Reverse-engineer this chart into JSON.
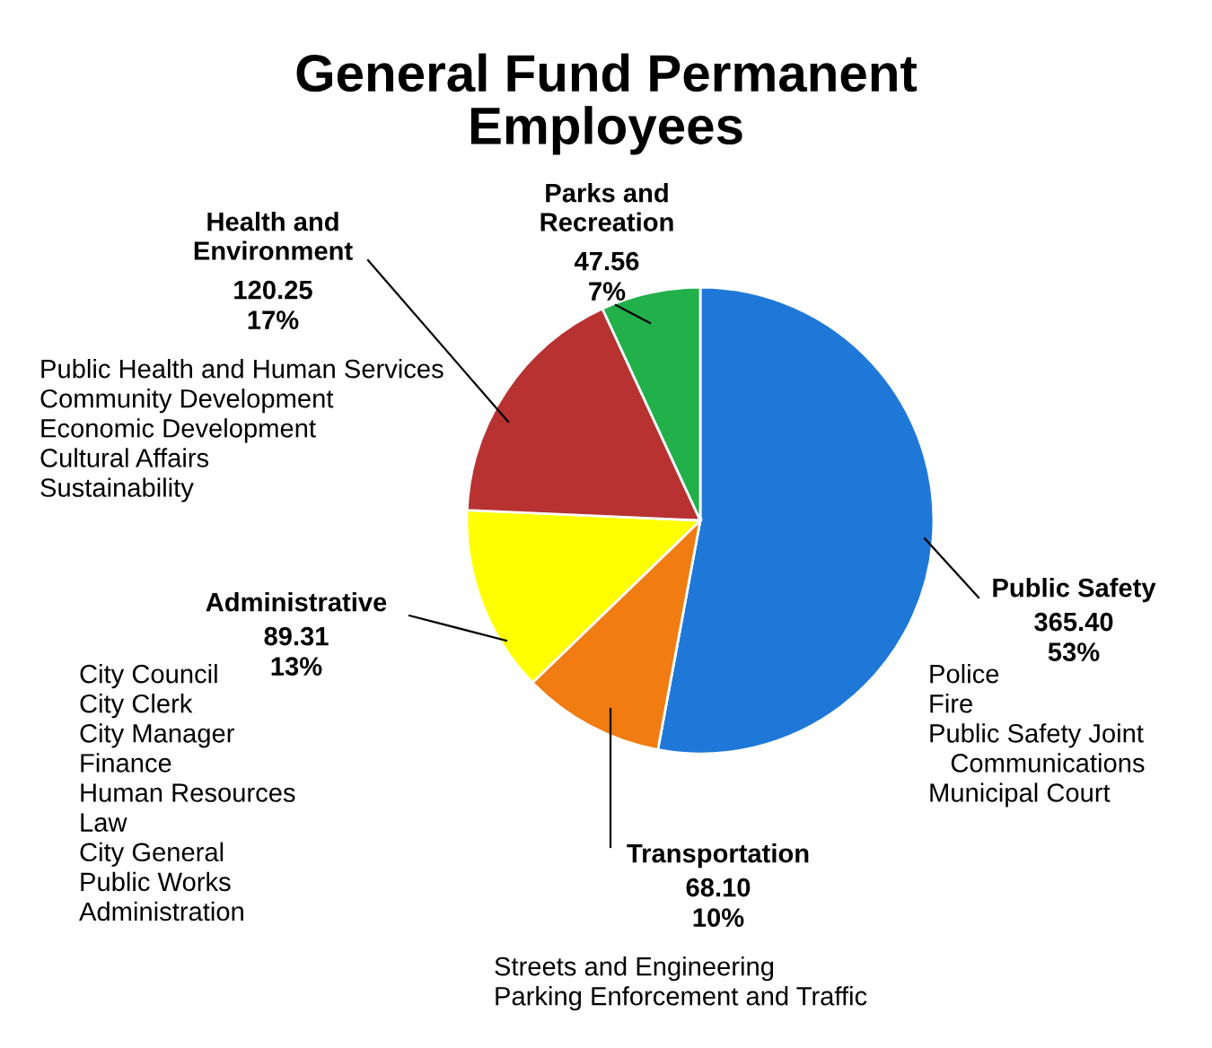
{
  "chart_data": {
    "type": "pie",
    "title": "General Fund Permanent\nEmployees",
    "categories": [
      "Public Safety",
      "Transportation",
      "Administrative",
      "Health and\nEnvironment",
      "Parks and\nRecreation"
    ],
    "values": [
      365.4,
      68.1,
      89.31,
      120.25,
      47.56
    ],
    "value_labels": [
      "365.40\n53%",
      "68.10\n10%",
      "89.31\n13%",
      "120.25\n17%",
      "47.56\n7%"
    ],
    "colors": [
      "#1f78d8",
      "#f07c12",
      "#ffff00",
      "#b83232",
      "#22b04a"
    ],
    "annotations": [
      "Police\nFire\nPublic Safety Joint\n   Communications\nMunicipal Court",
      "Streets and Engineering\nParking Enforcement and Traffic",
      "City Council\nCity Clerk\nCity Manager\nFinance\nHuman Resources\nLaw\nCity General\nPublic Works\nAdministration",
      "Public Health and Human Services\nCommunity Development\nEconomic Development\nCultural Affairs\nSustainability"
    ],
    "legend": false
  }
}
